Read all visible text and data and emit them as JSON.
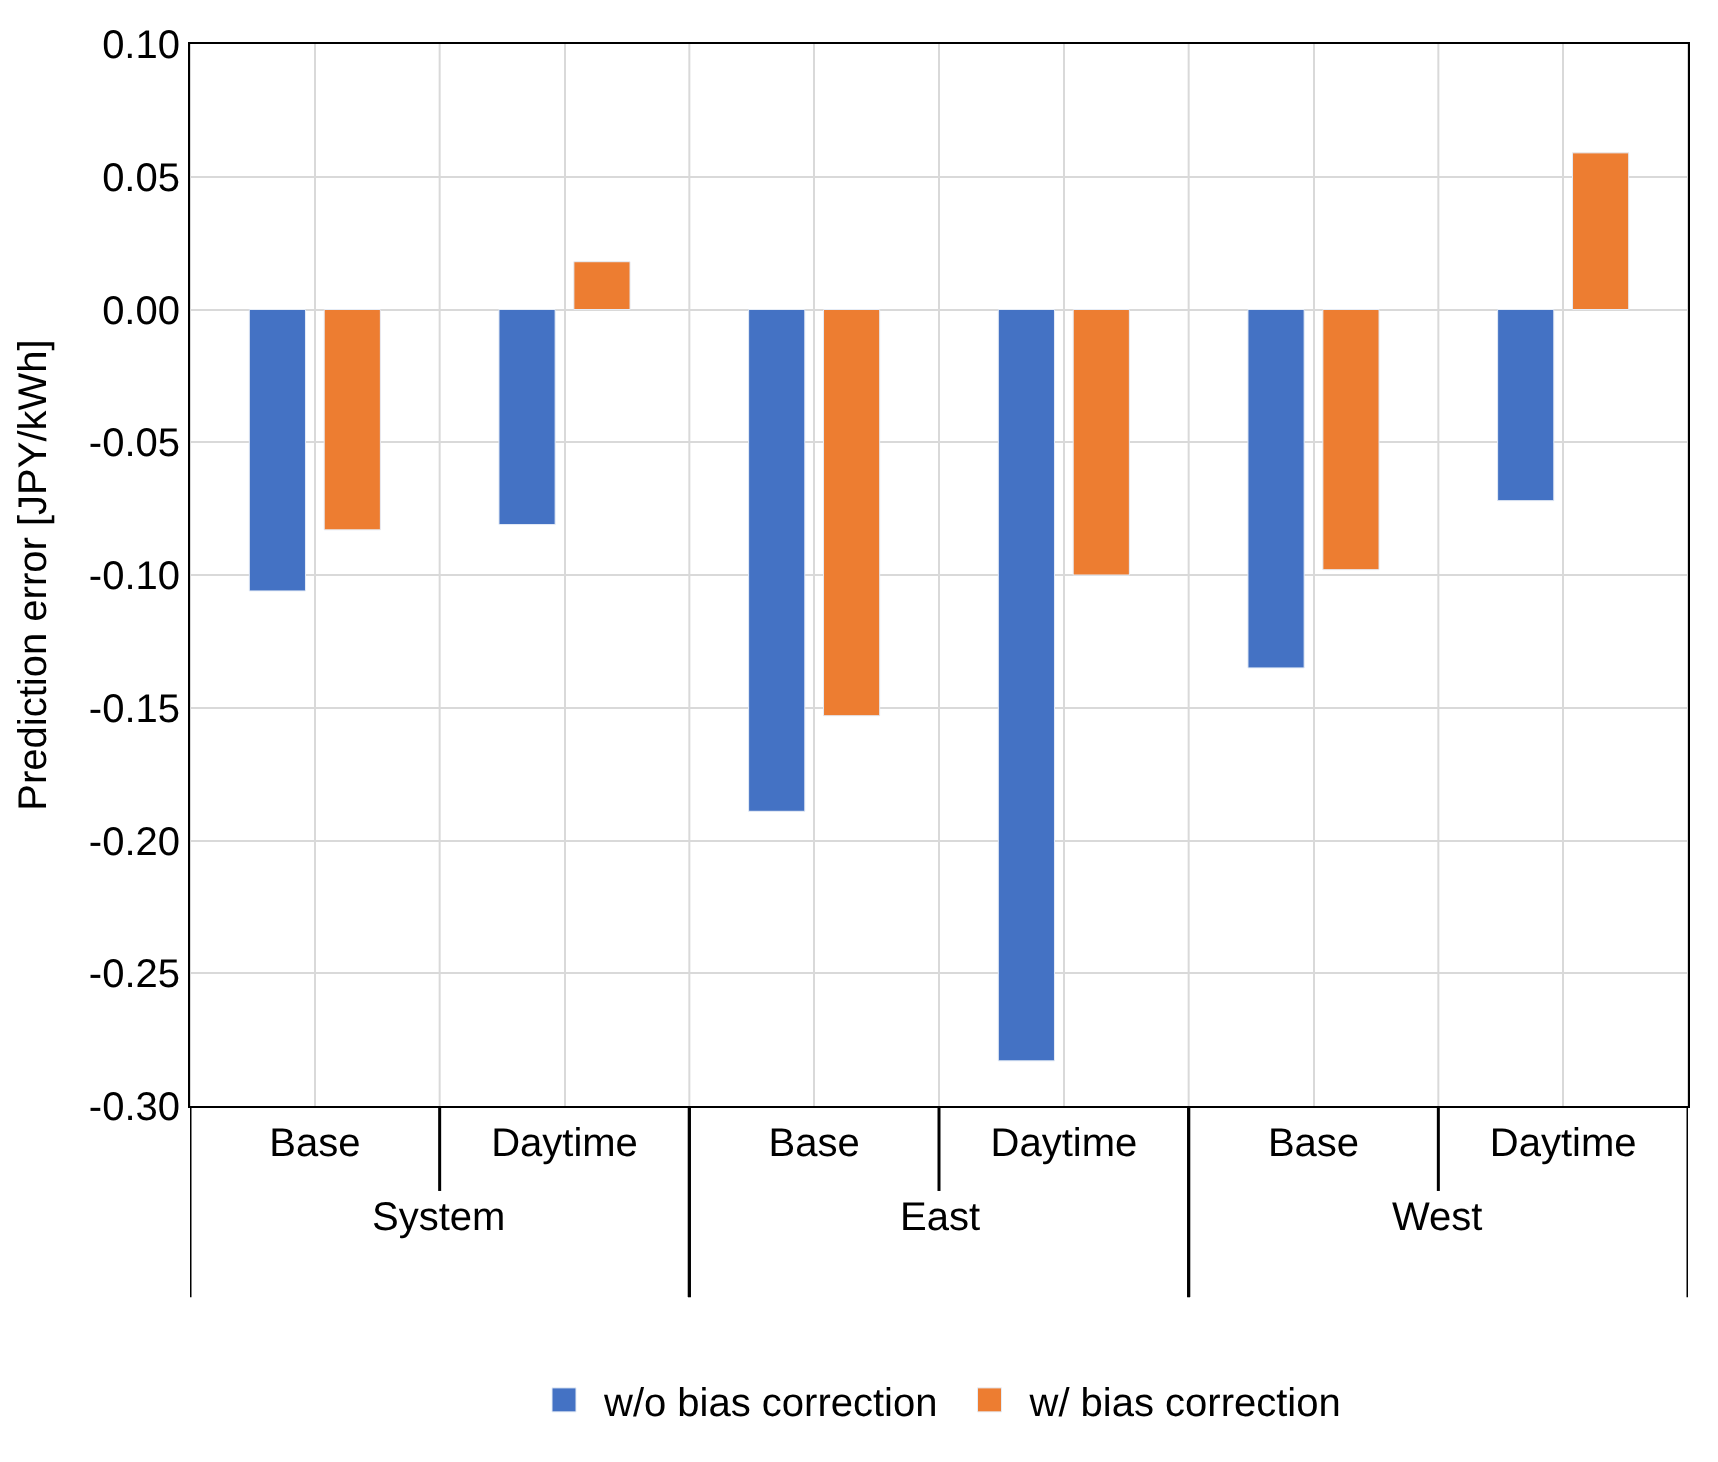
{
  "chart_data": {
    "type": "bar",
    "ylabel": "Prediction error [JPY/kWh]",
    "categories": [
      "Base",
      "Daytime",
      "Base",
      "Daytime",
      "Base",
      "Daytime"
    ],
    "annotations": [
      "System",
      "East",
      "West"
    ],
    "series": [
      {
        "name": "w/o bias correction",
        "color": "#4472c4",
        "values": [
          -0.106,
          -0.081,
          -0.189,
          -0.283,
          -0.135,
          -0.072
        ]
      },
      {
        "name": "w/ bias correction",
        "color": "#ed7d31",
        "values": [
          -0.083,
          0.018,
          -0.153,
          -0.1,
          -0.098,
          0.059
        ]
      }
    ],
    "ylim": [
      -0.3,
      0.1
    ],
    "yticks": [
      {
        "value": -0.3,
        "label": "-0.30"
      },
      {
        "value": -0.25,
        "label": "-0.25"
      },
      {
        "value": -0.2,
        "label": "-0.20"
      },
      {
        "value": -0.15,
        "label": "-0.15"
      },
      {
        "value": -0.1,
        "label": "-0.10"
      },
      {
        "value": -0.05,
        "label": "-0.05"
      },
      {
        "value": 0.0,
        "label": "0.00"
      },
      {
        "value": 0.05,
        "label": "0.05"
      },
      {
        "value": 0.1,
        "label": "0.10"
      }
    ],
    "grid": true,
    "legend": "bottom"
  }
}
